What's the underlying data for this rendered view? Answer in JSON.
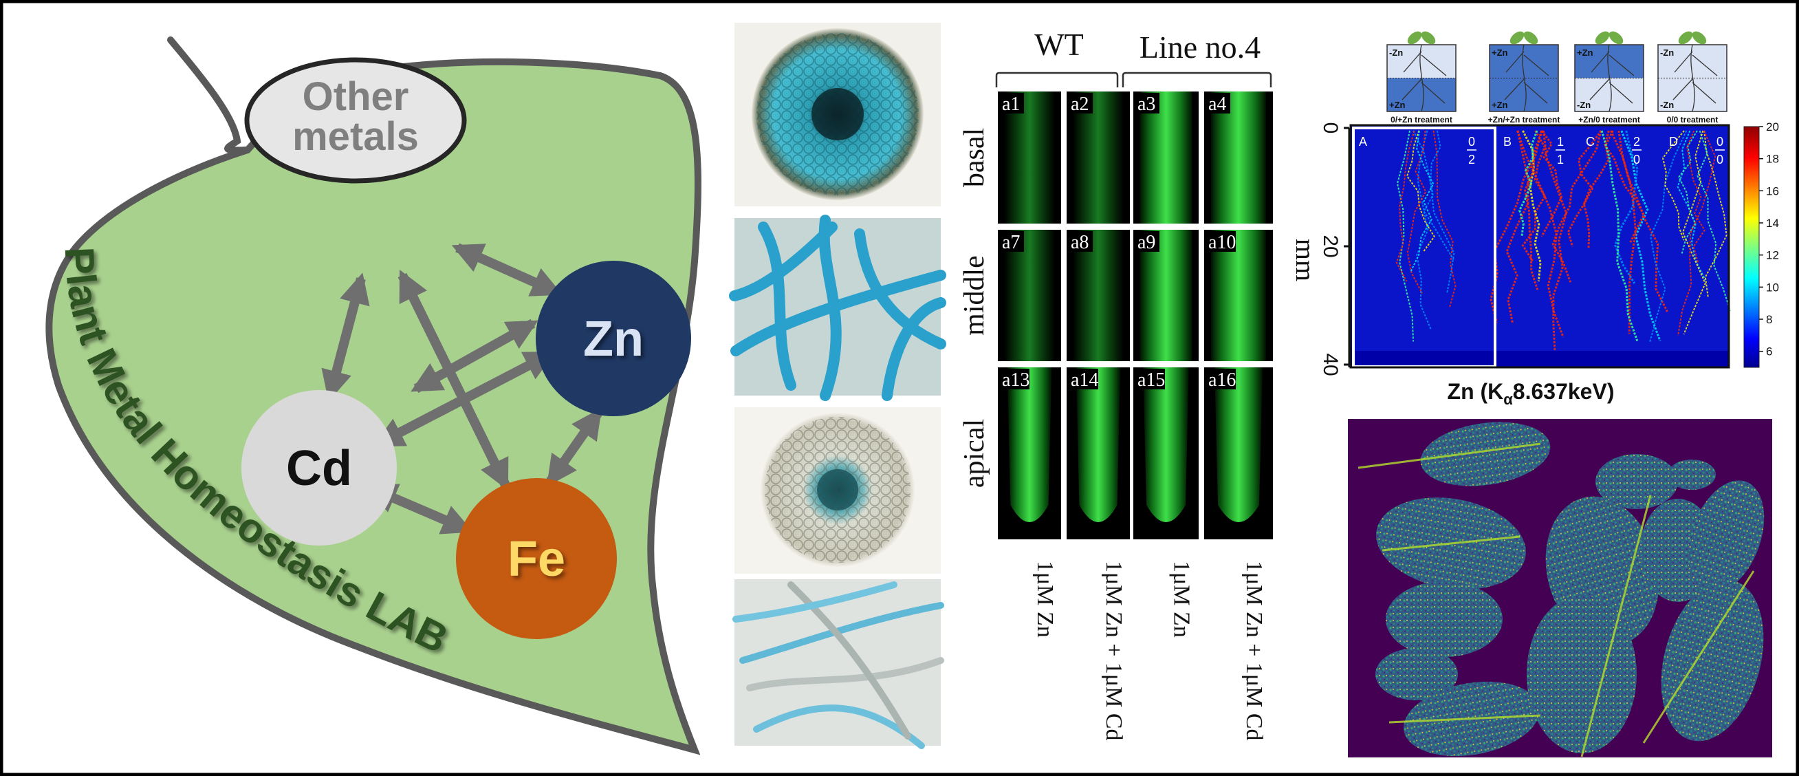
{
  "leaf_diagram": {
    "title": "Plant Metal Homeostasis LAB",
    "nodes": {
      "other_metals_line1": "Other",
      "other_metals_line2": "metals",
      "zn": "Zn",
      "cd": "Cd",
      "fe": "Fe"
    },
    "colors": {
      "leaf": "#a9d18e",
      "outline": "#595959",
      "other_metals": "#e7e6e6",
      "zn": "#1f3864",
      "cd": "#d9d9d9",
      "fe": "#c55a11",
      "arrow": "#6f6f6f"
    }
  },
  "micrographs": {
    "items": [
      "root-cross-section-stained",
      "root-hairs-blue-stained",
      "root-cross-section-light",
      "root-hairs-light"
    ]
  },
  "fluorescence": {
    "groups": [
      "WT",
      "Line no.4"
    ],
    "rows": [
      "basal",
      "middle",
      "apical"
    ],
    "panels": [
      [
        "a1",
        "a2",
        "a3",
        "a4"
      ],
      [
        "a7",
        "a8",
        "a9",
        "a10"
      ],
      [
        "a13",
        "a14",
        "a15",
        "a16"
      ]
    ],
    "treatments": [
      "1μM Zn",
      "1μM Zn + 1μM Cd",
      "1μM Zn",
      "1μM Zn + 1μM Cd"
    ]
  },
  "zn_imaging": {
    "schematics": [
      {
        "top": "-Zn",
        "bottom": "+Zn",
        "caption": "0/+Zn treatment"
      },
      {
        "top": "+Zn",
        "bottom": "+Zn",
        "caption": "+Zn/+Zn treatment"
      },
      {
        "top": "+Zn",
        "bottom": "-Zn",
        "caption": "+Zn/0 treatment"
      },
      {
        "top": "-Zn",
        "bottom": "-Zn",
        "caption": "0/0 treatment"
      }
    ],
    "panels": [
      {
        "letter": "A",
        "num": "0",
        "den": "2"
      },
      {
        "letter": "B",
        "num": "1",
        "den": "1"
      },
      {
        "letter": "C",
        "num": "2",
        "den": "0"
      },
      {
        "letter": "D",
        "num": "0",
        "den": "0"
      }
    ],
    "y_axis": {
      "label": "mm",
      "ticks": [
        "0",
        "20",
        "40"
      ]
    },
    "colorbar": {
      "ticks": [
        "20",
        "18",
        "16",
        "14",
        "12",
        "10",
        "8",
        "6"
      ],
      "min": 5,
      "max": 20,
      "colormap": "jet"
    },
    "xlabel_prefix": "Zn (K",
    "xlabel_sub": "α",
    "xlabel_suffix": "8.637keV)"
  },
  "leaf_map": {
    "colormap": "viridis",
    "background": "#440154"
  }
}
